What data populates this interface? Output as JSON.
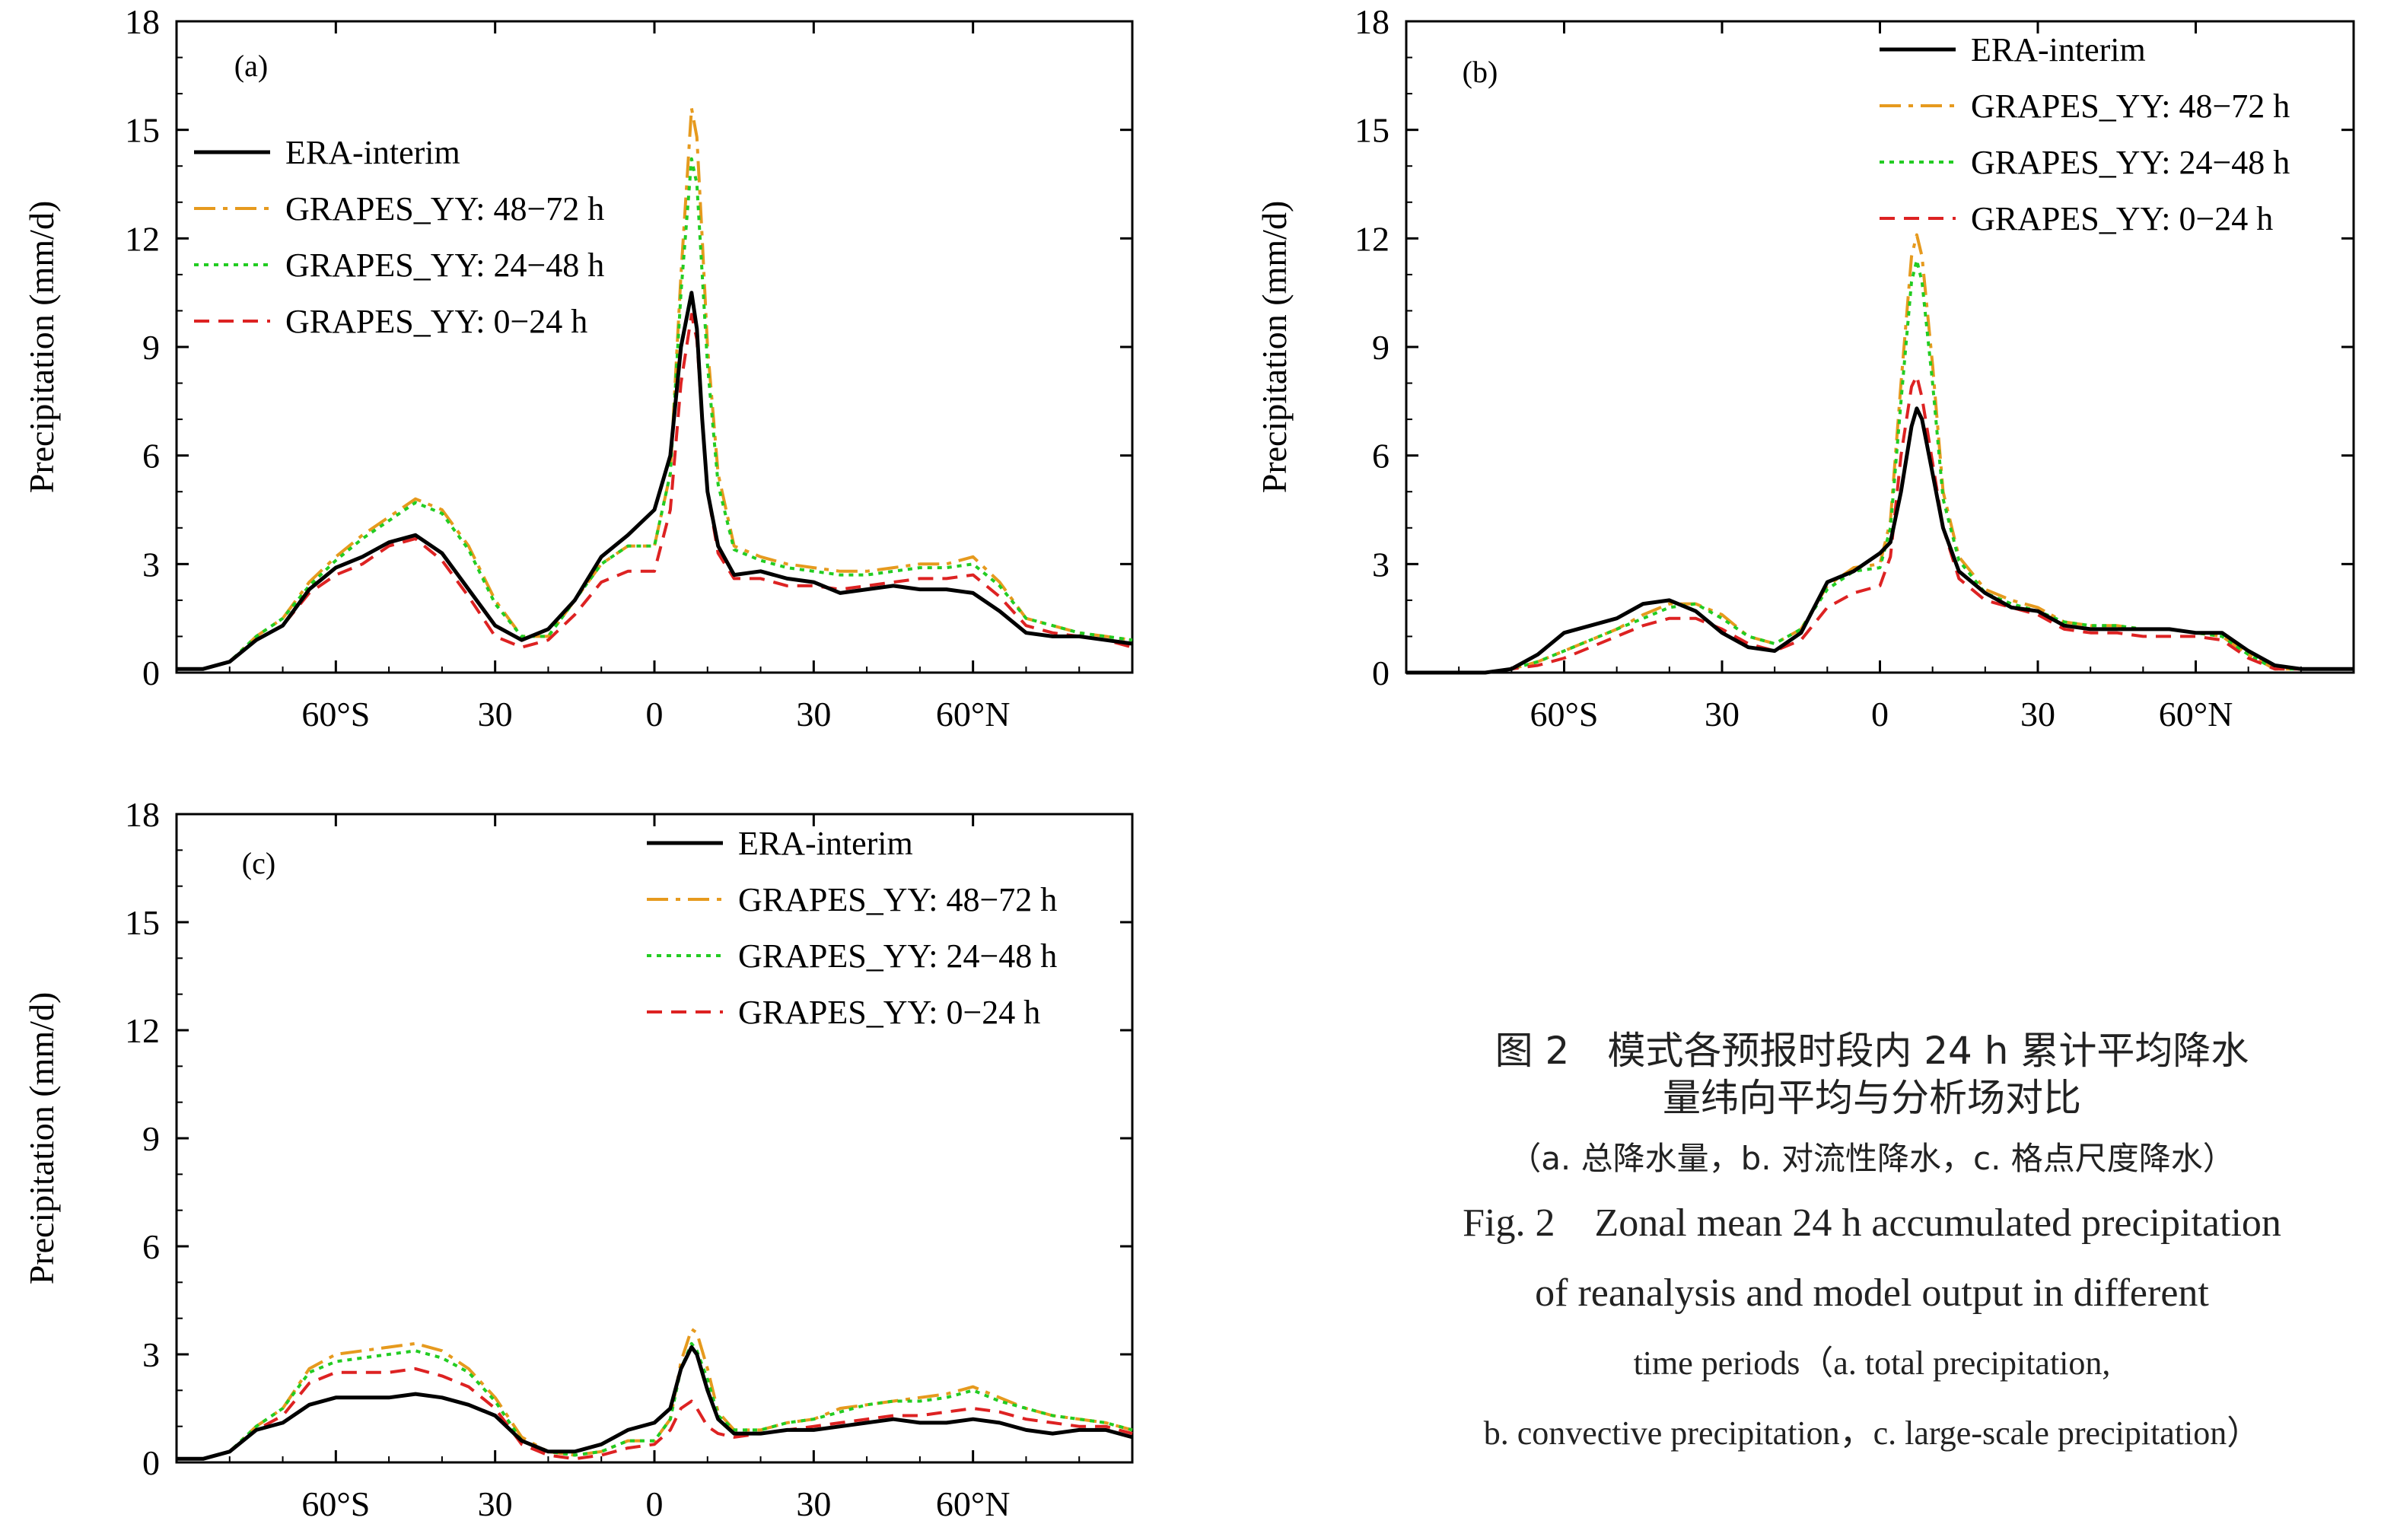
{
  "chart_data": [
    {
      "type": "line",
      "panel": "(a)",
      "ylabel": "Precipitation (mm/d)",
      "ylim": [
        0,
        18
      ],
      "yticks": [
        "0",
        "3",
        "6",
        "9",
        "12",
        "15",
        "18"
      ],
      "xlim": [
        -90,
        90
      ],
      "xticks": [
        {
          "value": -60,
          "label": "60°S"
        },
        {
          "value": -30,
          "label": "30"
        },
        {
          "value": 0,
          "label": "0"
        },
        {
          "value": 30,
          "label": "30"
        },
        {
          "value": 60,
          "label": "60°N"
        }
      ],
      "legend": [
        "ERA-interim",
        "GRAPES_YY: 48−72 h",
        "GRAPES_YY: 24−48 h",
        "GRAPES_YY: 0−24 h"
      ],
      "x": [
        -90,
        -85,
        -80,
        -75,
        -70,
        -65,
        -60,
        -55,
        -50,
        -45,
        -40,
        -35,
        -30,
        -25,
        -20,
        -15,
        -10,
        -5,
        0,
        3,
        5,
        7,
        8,
        9,
        10,
        12,
        15,
        20,
        25,
        30,
        35,
        40,
        45,
        50,
        55,
        60,
        65,
        70,
        75,
        80,
        85,
        90
      ],
      "series": [
        {
          "name": "ERA-interim",
          "color": "#000000",
          "style": "solid",
          "values": [
            0.1,
            0.1,
            0.3,
            0.9,
            1.3,
            2.3,
            2.9,
            3.2,
            3.6,
            3.8,
            3.3,
            2.3,
            1.3,
            0.9,
            1.2,
            2.0,
            3.2,
            3.8,
            4.5,
            6.0,
            9.0,
            10.5,
            9.5,
            7.0,
            5.0,
            3.5,
            2.7,
            2.8,
            2.6,
            2.5,
            2.2,
            2.3,
            2.4,
            2.3,
            2.3,
            2.2,
            1.7,
            1.1,
            1.0,
            1.0,
            0.9,
            0.8
          ]
        },
        {
          "name": "GRAPES_YY: 48−72 h",
          "color": "#E69A1E",
          "style": "dashdot",
          "values": [
            0.1,
            0.1,
            0.3,
            1.0,
            1.5,
            2.5,
            3.2,
            3.8,
            4.3,
            4.8,
            4.5,
            3.5,
            2.0,
            1.0,
            1.0,
            2.0,
            3.0,
            3.5,
            3.5,
            5.5,
            11.0,
            15.6,
            14.8,
            12.0,
            9.0,
            5.5,
            3.5,
            3.2,
            3.0,
            2.9,
            2.8,
            2.8,
            2.9,
            3.0,
            3.0,
            3.2,
            2.5,
            1.5,
            1.3,
            1.1,
            1.0,
            0.9
          ]
        },
        {
          "name": "GRAPES_YY: 24−48 h",
          "color": "#22CC22",
          "style": "dotted",
          "values": [
            0.1,
            0.1,
            0.3,
            1.0,
            1.5,
            2.4,
            3.1,
            3.7,
            4.2,
            4.7,
            4.4,
            3.4,
            1.9,
            1.0,
            1.0,
            2.0,
            3.0,
            3.5,
            3.5,
            5.5,
            10.5,
            14.2,
            13.5,
            11.0,
            8.5,
            5.2,
            3.4,
            3.1,
            2.9,
            2.8,
            2.7,
            2.7,
            2.8,
            2.9,
            2.9,
            3.0,
            2.4,
            1.5,
            1.3,
            1.1,
            1.0,
            0.9
          ]
        },
        {
          "name": "GRAPES_YY: 0−24 h",
          "color": "#DD2222",
          "style": "dashed",
          "values": [
            0.1,
            0.1,
            0.3,
            0.9,
            1.3,
            2.2,
            2.7,
            3.0,
            3.5,
            3.7,
            3.1,
            2.1,
            1.0,
            0.7,
            0.9,
            1.6,
            2.5,
            2.8,
            2.8,
            4.5,
            8.0,
            9.9,
            9.2,
            7.0,
            5.0,
            3.3,
            2.6,
            2.6,
            2.4,
            2.4,
            2.3,
            2.4,
            2.5,
            2.6,
            2.6,
            2.7,
            2.1,
            1.3,
            1.1,
            1.0,
            0.9,
            0.7
          ]
        }
      ]
    },
    {
      "type": "line",
      "panel": "(b)",
      "ylabel": "Precipitation (mm/d)",
      "ylim": [
        0,
        18
      ],
      "yticks": [
        "0",
        "3",
        "6",
        "9",
        "12",
        "15",
        "18"
      ],
      "xlim": [
        -90,
        90
      ],
      "xticks": [
        {
          "value": -60,
          "label": "60°S"
        },
        {
          "value": -30,
          "label": "30"
        },
        {
          "value": 0,
          "label": "0"
        },
        {
          "value": 30,
          "label": "30"
        },
        {
          "value": 60,
          "label": "60°N"
        }
      ],
      "legend": [
        "ERA-interim",
        "GRAPES_YY: 48−72 h",
        "GRAPES_YY: 24−48 h",
        "GRAPES_YY: 0−24 h"
      ],
      "x": [
        -90,
        -80,
        -75,
        -70,
        -65,
        -60,
        -55,
        -50,
        -45,
        -40,
        -35,
        -30,
        -25,
        -20,
        -15,
        -10,
        -5,
        0,
        2,
        4,
        6,
        7,
        8,
        10,
        12,
        15,
        20,
        25,
        30,
        35,
        40,
        45,
        50,
        55,
        60,
        65,
        70,
        75,
        80,
        85,
        90
      ],
      "series": [
        {
          "name": "ERA-interim",
          "color": "#000000",
          "style": "solid",
          "values": [
            0.0,
            0.0,
            0.0,
            0.1,
            0.5,
            1.1,
            1.3,
            1.5,
            1.9,
            2.0,
            1.7,
            1.1,
            0.7,
            0.6,
            1.1,
            2.5,
            2.8,
            3.3,
            3.6,
            5.0,
            6.8,
            7.3,
            7.0,
            5.5,
            4.0,
            2.8,
            2.2,
            1.8,
            1.7,
            1.3,
            1.2,
            1.2,
            1.2,
            1.2,
            1.1,
            1.1,
            0.6,
            0.2,
            0.1,
            0.1,
            0.1
          ]
        },
        {
          "name": "GRAPES_YY: 48−72 h",
          "color": "#E69A1E",
          "style": "dashdot",
          "values": [
            0.0,
            0.0,
            0.0,
            0.1,
            0.3,
            0.6,
            0.9,
            1.2,
            1.6,
            1.9,
            1.9,
            1.6,
            1.0,
            0.8,
            1.2,
            2.4,
            2.9,
            3.0,
            4.2,
            8.0,
            11.5,
            12.1,
            11.5,
            8.5,
            5.0,
            3.2,
            2.3,
            2.0,
            1.8,
            1.4,
            1.3,
            1.3,
            1.2,
            1.2,
            1.1,
            1.0,
            0.5,
            0.1,
            0.1,
            0.1,
            0.1
          ]
        },
        {
          "name": "GRAPES_YY: 24−48 h",
          "color": "#22CC22",
          "style": "dotted",
          "values": [
            0.0,
            0.0,
            0.0,
            0.1,
            0.3,
            0.6,
            0.9,
            1.2,
            1.5,
            1.8,
            1.9,
            1.5,
            1.0,
            0.8,
            1.2,
            2.3,
            2.8,
            2.9,
            4.0,
            7.5,
            10.8,
            11.4,
            10.8,
            8.0,
            4.8,
            3.1,
            2.2,
            1.9,
            1.7,
            1.4,
            1.3,
            1.3,
            1.2,
            1.2,
            1.1,
            1.0,
            0.5,
            0.1,
            0.1,
            0.1,
            0.1
          ]
        },
        {
          "name": "GRAPES_YY: 0−24 h",
          "color": "#DD2222",
          "style": "dashed",
          "values": [
            0.0,
            0.0,
            0.0,
            0.1,
            0.2,
            0.4,
            0.7,
            1.0,
            1.3,
            1.5,
            1.5,
            1.2,
            0.8,
            0.6,
            0.9,
            1.8,
            2.2,
            2.4,
            3.2,
            6.0,
            7.9,
            8.2,
            7.6,
            5.8,
            4.0,
            2.6,
            2.0,
            1.8,
            1.6,
            1.2,
            1.1,
            1.1,
            1.0,
            1.0,
            1.0,
            0.9,
            0.4,
            0.1,
            0.1,
            0.1,
            0.1
          ]
        }
      ]
    },
    {
      "type": "line",
      "panel": "(c)",
      "ylabel": "Precipitation (mm/d)",
      "ylim": [
        0,
        18
      ],
      "yticks": [
        "0",
        "3",
        "6",
        "9",
        "12",
        "15",
        "18"
      ],
      "xlim": [
        -90,
        90
      ],
      "xticks": [
        {
          "value": -60,
          "label": "60°S"
        },
        {
          "value": -30,
          "label": "30"
        },
        {
          "value": 0,
          "label": "0"
        },
        {
          "value": 30,
          "label": "30"
        },
        {
          "value": 60,
          "label": "60°N"
        }
      ],
      "legend": [
        "ERA-interim",
        "GRAPES_YY: 48−72 h",
        "GRAPES_YY: 24−48 h",
        "GRAPES_YY: 0−24 h"
      ],
      "x": [
        -90,
        -85,
        -80,
        -75,
        -70,
        -65,
        -60,
        -55,
        -50,
        -45,
        -40,
        -35,
        -30,
        -25,
        -20,
        -15,
        -10,
        -5,
        0,
        3,
        5,
        7,
        8,
        10,
        12,
        15,
        20,
        25,
        30,
        35,
        40,
        45,
        50,
        55,
        60,
        65,
        70,
        75,
        80,
        85,
        90
      ],
      "series": [
        {
          "name": "ERA-interim",
          "color": "#000000",
          "style": "solid",
          "values": [
            0.1,
            0.1,
            0.3,
            0.9,
            1.1,
            1.6,
            1.8,
            1.8,
            1.8,
            1.9,
            1.8,
            1.6,
            1.3,
            0.6,
            0.3,
            0.3,
            0.5,
            0.9,
            1.1,
            1.5,
            2.6,
            3.2,
            3.0,
            2.0,
            1.2,
            0.8,
            0.8,
            0.9,
            0.9,
            1.0,
            1.1,
            1.2,
            1.1,
            1.1,
            1.2,
            1.1,
            0.9,
            0.8,
            0.9,
            0.9,
            0.7
          ]
        },
        {
          "name": "GRAPES_YY: 48−72 h",
          "color": "#E69A1E",
          "style": "dashdot",
          "values": [
            0.1,
            0.1,
            0.3,
            1.0,
            1.5,
            2.6,
            3.0,
            3.1,
            3.2,
            3.3,
            3.1,
            2.6,
            1.8,
            0.7,
            0.3,
            0.2,
            0.3,
            0.6,
            0.6,
            1.2,
            2.8,
            3.7,
            3.6,
            2.6,
            1.4,
            0.9,
            0.9,
            1.1,
            1.2,
            1.5,
            1.6,
            1.7,
            1.8,
            1.9,
            2.1,
            1.8,
            1.5,
            1.3,
            1.2,
            1.1,
            0.9
          ]
        },
        {
          "name": "GRAPES_YY: 24−48 h",
          "color": "#22CC22",
          "style": "dotted",
          "values": [
            0.1,
            0.1,
            0.3,
            1.0,
            1.5,
            2.5,
            2.8,
            2.9,
            3.0,
            3.1,
            2.9,
            2.5,
            1.7,
            0.6,
            0.3,
            0.2,
            0.3,
            0.6,
            0.6,
            1.2,
            2.6,
            3.3,
            3.1,
            2.3,
            1.3,
            0.9,
            0.9,
            1.1,
            1.2,
            1.4,
            1.6,
            1.7,
            1.7,
            1.8,
            2.0,
            1.7,
            1.5,
            1.3,
            1.2,
            1.1,
            0.9
          ]
        },
        {
          "name": "GRAPES_YY: 0−24 h",
          "color": "#DD2222",
          "style": "dashed",
          "values": [
            0.1,
            0.1,
            0.3,
            0.9,
            1.3,
            2.2,
            2.5,
            2.5,
            2.5,
            2.6,
            2.4,
            2.1,
            1.5,
            0.5,
            0.2,
            0.1,
            0.2,
            0.4,
            0.5,
            0.9,
            1.5,
            1.7,
            1.5,
            1.0,
            0.8,
            0.7,
            0.8,
            0.9,
            1.0,
            1.1,
            1.2,
            1.3,
            1.3,
            1.4,
            1.5,
            1.4,
            1.2,
            1.1,
            1.0,
            1.0,
            0.8
          ]
        }
      ]
    }
  ],
  "caption": {
    "zh_title_1": "图 2　模式各预报时段内 24 h 累计平均降水",
    "zh_title_2": "量纬向平均与分析场对比",
    "zh_sub": "（a. 总降水量，b. 对流性降水，c. 格点尺度降水）",
    "en_1": "Fig. 2　Zonal mean 24 h accumulated precipitation",
    "en_2": "of reanalysis and model output in different",
    "en_3": "time periods（a. total precipitation,",
    "en_4": "b. convective precipitation，c. large-scale precipitation）"
  }
}
